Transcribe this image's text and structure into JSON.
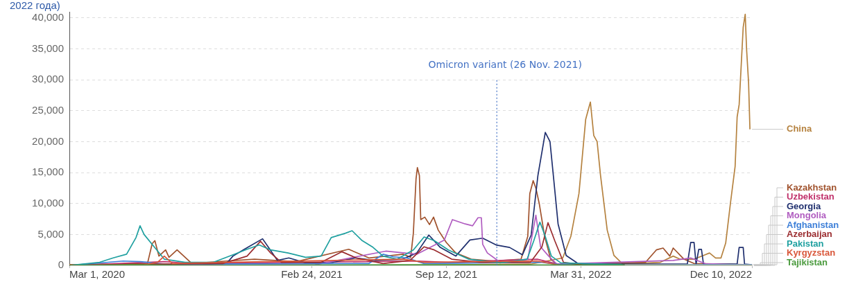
{
  "chart_data": {
    "type": "line",
    "title": "2022 года)",
    "grid": "y",
    "marker": "none",
    "line_style": "solid",
    "xlim": [
      "2020-03-01",
      "2022-12-10"
    ],
    "xticks": [
      {
        "value": "2020-03-01",
        "label": "Mar 1, 2020"
      },
      {
        "value": "2021-02-24",
        "label": "Feb 24, 2021"
      },
      {
        "value": "2021-09-12",
        "label": "Sep 12, 2021"
      },
      {
        "value": "2022-03-31",
        "label": "Mar 31, 2022"
      },
      {
        "value": "2022-12-10",
        "label": "Dec 10, 2022"
      }
    ],
    "ylim": [
      0,
      41000
    ],
    "yticks": [
      0,
      {
        "value": 5000,
        "label": "5,000"
      },
      {
        "value": 10000,
        "label": "10,000"
      },
      {
        "value": 15000,
        "label": "15,000"
      },
      {
        "value": 20000,
        "label": "20,000"
      },
      {
        "value": 25000,
        "label": "25,000"
      },
      {
        "value": 30000,
        "label": "30,000"
      },
      {
        "value": 35000,
        "label": "35,000"
      },
      {
        "value": 40000,
        "label": "40,000"
      }
    ],
    "ref_lines": [
      {
        "axis": "x",
        "value": "2021-11-26",
        "label": "Omicron variant (26 Nov. 2021)",
        "color": "#4472c4",
        "line_style": "dotted"
      }
    ],
    "series": [
      {
        "name": "China",
        "color": "#b5823f",
        "x": [
          "2020-03-01",
          "2020-04-15",
          "2021-06-01",
          "2022-01-15",
          "2022-03-04",
          "2022-03-16",
          "2022-03-28",
          "2022-04-07",
          "2022-04-14",
          "2022-04-19",
          "2022-04-24",
          "2022-04-29",
          "2022-05-09",
          "2022-05-19",
          "2022-06-01",
          "2022-07-27",
          "2022-08-15",
          "2022-08-25",
          "2022-09-15",
          "2022-10-08",
          "2022-10-17",
          "2022-10-25",
          "2022-11-01",
          "2022-11-08",
          "2022-11-15",
          "2022-11-18",
          "2022-11-21",
          "2022-11-27",
          "2022-11-30",
          "2022-12-02",
          "2022-12-05",
          "2022-12-07"
        ],
        "values": [
          100,
          0,
          0,
          200,
          1200,
          4700,
          11600,
          23600,
          26400,
          21000,
          20000,
          14600,
          5700,
          1600,
          200,
          500,
          1500,
          1000,
          1000,
          2000,
          1200,
          1200,
          3600,
          10000,
          16000,
          24000,
          26000,
          38500,
          40600,
          35000,
          29500,
          22000
        ]
      },
      {
        "name": "Kazakhstan",
        "color": "#a0522d",
        "x": [
          "2020-03-01",
          "2020-06-25",
          "2020-07-02",
          "2020-07-06",
          "2020-07-12",
          "2020-07-22",
          "2020-07-27",
          "2020-08-08",
          "2020-08-30",
          "2020-10-20",
          "2020-12-01",
          "2021-02-01",
          "2021-04-20",
          "2021-05-20",
          "2021-07-10",
          "2021-07-21",
          "2021-07-25",
          "2021-07-29",
          "2021-07-31",
          "2021-08-03",
          "2021-08-05",
          "2021-08-11",
          "2021-08-18",
          "2021-08-24",
          "2021-08-31",
          "2021-09-12",
          "2021-09-26",
          "2021-10-19",
          "2021-11-21",
          "2022-01-01",
          "2022-01-11",
          "2022-01-14",
          "2022-01-19",
          "2022-01-23",
          "2022-01-28",
          "2022-02-05",
          "2022-02-14",
          "2022-02-23",
          "2022-07-05",
          "2022-07-21",
          "2022-07-31",
          "2022-08-10",
          "2022-08-15",
          "2022-08-31",
          "2022-09-15",
          "2022-12-10"
        ],
        "values": [
          100,
          300,
          3500,
          4000,
          1500,
          2500,
          1300,
          2500,
          300,
          700,
          1000,
          600,
          2600,
          1200,
          1800,
          1300,
          5200,
          14000,
          15800,
          14500,
          7400,
          7800,
          6600,
          7800,
          5700,
          3700,
          2000,
          1000,
          700,
          1000,
          4700,
          11600,
          13700,
          12500,
          10000,
          4700,
          1000,
          200,
          500,
          2500,
          2800,
          1500,
          2800,
          1000,
          300,
          100
        ]
      },
      {
        "name": "Uzbekistan",
        "color": "#c0306a",
        "x": [
          "2020-03-01",
          "2020-07-20",
          "2020-09-01",
          "2021-08-01",
          "2021-09-15",
          "2022-01-25",
          "2022-03-01",
          "2022-12-10"
        ],
        "values": [
          0,
          600,
          300,
          700,
          500,
          1000,
          100,
          0
        ]
      },
      {
        "name": "Georgia",
        "color": "#1f2f6e",
        "x": [
          "2020-03-01",
          "2020-09-15",
          "2020-10-22",
          "2020-10-30",
          "2020-11-16",
          "2020-12-13",
          "2020-12-25",
          "2021-01-04",
          "2021-01-21",
          "2021-02-15",
          "2021-03-28",
          "2021-04-30",
          "2021-05-29",
          "2021-07-09",
          "2021-07-30",
          "2021-08-17",
          "2021-09-03",
          "2021-09-26",
          "2021-10-17",
          "2021-11-05",
          "2021-11-25",
          "2021-12-15",
          "2022-01-03",
          "2022-01-16",
          "2022-01-26",
          "2022-02-06",
          "2022-02-13",
          "2022-02-18",
          "2022-02-25",
          "2022-03-09",
          "2022-03-28",
          "2022-09-05",
          "2022-09-10",
          "2022-09-15",
          "2022-09-18",
          "2022-09-22",
          "2022-09-26",
          "2022-09-29",
          "2022-11-18",
          "2022-11-21",
          "2022-11-27",
          "2022-11-29",
          "2022-12-10"
        ],
        "values": [
          0,
          100,
          500,
          1500,
          2600,
          4300,
          2400,
          800,
          1200,
          400,
          500,
          1200,
          800,
          1000,
          2000,
          4900,
          2900,
          1500,
          4100,
          4400,
          3300,
          2900,
          1700,
          4900,
          14500,
          21500,
          20000,
          14500,
          6700,
          1600,
          200,
          200,
          3700,
          3700,
          200,
          2600,
          2600,
          200,
          200,
          2900,
          2900,
          200,
          100
        ]
      },
      {
        "name": "Mongolia",
        "color": "#b05cc0",
        "x": [
          "2020-03-01",
          "2021-03-01",
          "2021-06-14",
          "2021-07-30",
          "2021-09-09",
          "2021-09-21",
          "2021-10-10",
          "2021-10-21",
          "2021-10-29",
          "2021-11-03",
          "2021-11-05",
          "2021-11-12",
          "2021-12-01",
          "2022-01-11",
          "2022-01-23",
          "2022-01-30",
          "2022-02-11",
          "2022-02-23",
          "2022-08-15",
          "2022-09-10",
          "2022-10-01",
          "2022-12-10"
        ],
        "values": [
          0,
          100,
          2300,
          1800,
          4100,
          7400,
          6700,
          6400,
          7700,
          7700,
          3400,
          2000,
          500,
          1000,
          8100,
          3000,
          1500,
          200,
          800,
          1200,
          300,
          0
        ]
      },
      {
        "name": "Afghanistan",
        "color": "#3d7fd8",
        "x": [
          "2020-03-01",
          "2020-05-20",
          "2020-06-15",
          "2020-07-20",
          "2021-05-20",
          "2021-06-10",
          "2021-06-25",
          "2021-07-15",
          "2021-08-10",
          "2022-02-01",
          "2022-03-01",
          "2022-12-10"
        ],
        "values": [
          0,
          700,
          600,
          200,
          300,
          1800,
          1400,
          1200,
          300,
          500,
          100,
          100
        ]
      },
      {
        "name": "Azerbaijan",
        "color": "#9b2d30",
        "x": [
          "2020-03-01",
          "2020-07-01",
          "2020-10-15",
          "2020-11-20",
          "2020-12-10",
          "2020-12-25",
          "2021-01-10",
          "2021-03-10",
          "2021-04-10",
          "2021-05-01",
          "2021-06-10",
          "2021-07-20",
          "2021-08-10",
          "2021-08-25",
          "2021-09-20",
          "2021-11-01",
          "2022-01-15",
          "2022-02-01",
          "2022-02-10",
          "2022-02-20",
          "2022-03-05",
          "2022-04-01",
          "2022-12-10"
        ],
        "values": [
          0,
          200,
          300,
          1500,
          3900,
          2000,
          500,
          500,
          2200,
          1200,
          300,
          800,
          3000,
          2500,
          1000,
          500,
          500,
          3000,
          6900,
          4000,
          500,
          100,
          0
        ]
      },
      {
        "name": "Pakistan",
        "color": "#1fa0a0",
        "x": [
          "2020-03-01",
          "2020-04-15",
          "2020-05-05",
          "2020-05-25",
          "2020-06-08",
          "2020-06-14",
          "2020-06-20",
          "2020-07-05",
          "2020-07-20",
          "2020-08-20",
          "2020-10-01",
          "2020-11-01",
          "2020-11-20",
          "2020-12-08",
          "2020-12-25",
          "2021-01-20",
          "2021-02-15",
          "2021-03-10",
          "2021-03-25",
          "2021-04-15",
          "2021-04-25",
          "2021-05-10",
          "2021-05-25",
          "2021-06-10",
          "2021-07-01",
          "2021-07-25",
          "2021-08-10",
          "2021-08-25",
          "2021-09-15",
          "2021-10-15",
          "2021-12-01",
          "2022-01-10",
          "2022-01-20",
          "2022-01-29",
          "2022-02-05",
          "2022-02-15",
          "2022-03-01",
          "2022-06-01"
        ],
        "values": [
          0,
          500,
          1200,
          1800,
          4500,
          6400,
          5000,
          3000,
          1000,
          500,
          500,
          1800,
          2600,
          3300,
          2500,
          2000,
          1300,
          1500,
          4500,
          5200,
          5600,
          4000,
          3000,
          1500,
          1000,
          2500,
          4600,
          4000,
          2500,
          1000,
          400,
          1000,
          4000,
          7000,
          5000,
          1500,
          400,
          100
        ]
      },
      {
        "name": "Kyrgyzstan",
        "color": "#d9573a",
        "x": [
          "2020-03-01",
          "2020-06-20",
          "2020-07-10",
          "2020-07-20",
          "2020-08-01",
          "2020-10-20",
          "2021-07-10",
          "2021-08-10",
          "2022-01-25",
          "2022-03-01",
          "2022-12-10"
        ],
        "values": [
          0,
          100,
          500,
          1500,
          300,
          500,
          1000,
          500,
          700,
          0,
          0
        ]
      },
      {
        "name": "Tajikistan",
        "color": "#4a9a3d",
        "x": [
          "2020-03-01",
          "2020-06-01",
          "2020-09-01",
          "2021-07-01",
          "2022-12-10"
        ],
        "values": [
          0,
          100,
          0,
          100,
          0
        ]
      }
    ]
  }
}
